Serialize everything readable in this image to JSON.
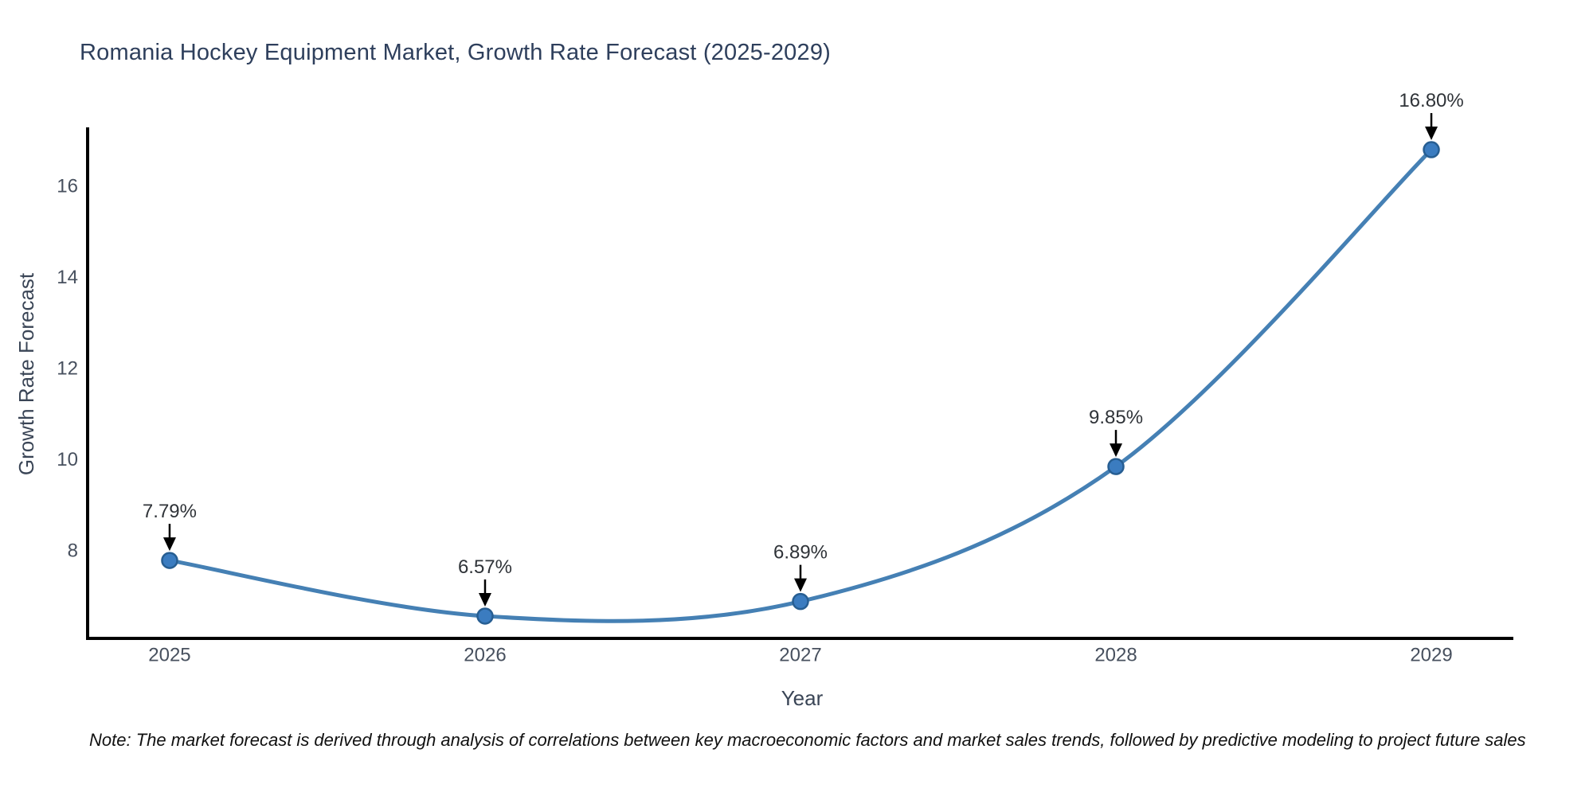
{
  "title": "Romania Hockey Equipment Market, Growth Rate Forecast (2025-2029)",
  "note": "Note: The market forecast is derived through analysis of correlations between key macroeconomic factors and market sales trends, followed by predictive modeling to project future sales",
  "chart_data": {
    "type": "line",
    "title": "Romania Hockey Equipment Market, Growth Rate Forecast (2025-2029)",
    "xlabel": "Year",
    "ylabel": "Growth Rate Forecast",
    "categories": [
      "2025",
      "2026",
      "2027",
      "2028",
      "2029"
    ],
    "x": [
      2025,
      2026,
      2027,
      2028,
      2029
    ],
    "values": [
      7.79,
      6.57,
      6.89,
      9.85,
      16.8
    ],
    "point_labels": [
      "7.79%",
      "6.57%",
      "6.89%",
      "9.85%",
      "16.80%"
    ],
    "y_ticks": [
      8,
      10,
      12,
      14,
      16
    ],
    "xlim": [
      2024.74,
      2029.26
    ],
    "ylim": [
      6.08,
      17.29
    ],
    "grid": false,
    "legend": "none",
    "smooth": true,
    "colors": {
      "line": "#4580b4",
      "marker_fill": "#3b7cc0",
      "marker_edge": "#275e92",
      "axis": "#000000",
      "tick_label": "#47505e",
      "annotation_text": "#2f3338",
      "arrow": "#000000",
      "title": "#2e3f5c",
      "axis_title": "#3a4556"
    }
  }
}
